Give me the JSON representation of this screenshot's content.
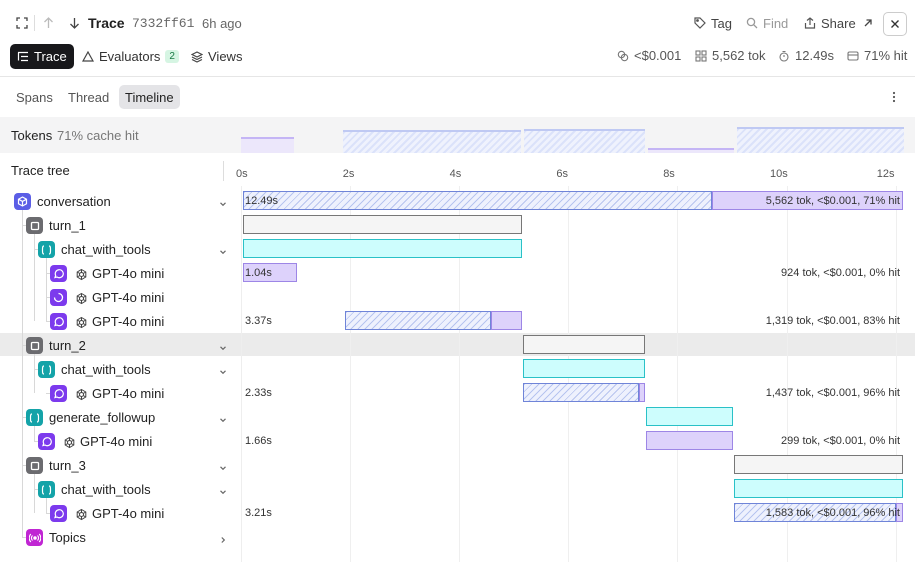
{
  "header": {
    "title": "Trace",
    "trace_id": "7332ff61",
    "time_ago": "6h ago",
    "tag_label": "Tag",
    "find_label": "Find",
    "share_label": "Share"
  },
  "subheader": {
    "trace_label": "Trace",
    "evaluators_label": "Evaluators",
    "evaluators_count": "2",
    "views_label": "Views",
    "cost": "<$0.001",
    "tokens": "5,562 tok",
    "duration": "12.49s",
    "cache": "71% hit"
  },
  "tabs": {
    "spans": "Spans",
    "thread": "Thread",
    "timeline": "Timeline"
  },
  "tokens_row": {
    "label": "Tokens",
    "cache": "71% cache hit"
  },
  "tree": {
    "title": "Trace tree",
    "items": [
      {
        "label": "conversation",
        "kind": "root"
      },
      {
        "label": "turn_1",
        "kind": "turn"
      },
      {
        "label": "chat_with_tools",
        "kind": "func"
      },
      {
        "label": "GPT-4o mini",
        "kind": "llm"
      },
      {
        "label": "GPT-4o mini",
        "kind": "llm-loading"
      },
      {
        "label": "GPT-4o mini",
        "kind": "llm"
      },
      {
        "label": "turn_2",
        "kind": "turn"
      },
      {
        "label": "chat_with_tools",
        "kind": "func"
      },
      {
        "label": "GPT-4o mini",
        "kind": "llm"
      },
      {
        "label": "generate_followup",
        "kind": "func"
      },
      {
        "label": "GPT-4o mini",
        "kind": "llm"
      },
      {
        "label": "turn_3",
        "kind": "turn"
      },
      {
        "label": "chat_with_tools",
        "kind": "func"
      },
      {
        "label": "GPT-4o mini",
        "kind": "llm"
      },
      {
        "label": "Topics",
        "kind": "topics"
      }
    ]
  },
  "timeline": {
    "ticks": [
      "0s",
      "2s",
      "4s",
      "6s",
      "8s",
      "10s",
      "12s"
    ],
    "rows": [
      {
        "duration": "12.49s",
        "stats": "5,562 tok, <$0.001, 71% hit"
      },
      {
        "duration": "",
        "stats": ""
      },
      {
        "duration": "",
        "stats": ""
      },
      {
        "duration": "1.04s",
        "stats": "924 tok, <$0.001, 0% hit"
      },
      {
        "duration": "",
        "stats": ""
      },
      {
        "duration": "3.37s",
        "stats": "1,319 tok, <$0.001, 83% hit"
      },
      {
        "duration": "",
        "stats": ""
      },
      {
        "duration": "",
        "stats": ""
      },
      {
        "duration": "2.33s",
        "stats": "1,437 tok, <$0.001, 96% hit"
      },
      {
        "duration": "",
        "stats": ""
      },
      {
        "duration": "1.66s",
        "stats": "299 tok, <$0.001, 0% hit"
      },
      {
        "duration": "",
        "stats": ""
      },
      {
        "duration": "",
        "stats": ""
      },
      {
        "duration": "3.21s",
        "stats": "1,583 tok, <$0.001, 96% hit"
      },
      {
        "duration": "",
        "stats": ""
      }
    ]
  },
  "colors": {
    "root": "#5b5ee6",
    "turn": "#6b6b6f",
    "func": "#14a3a8",
    "llm": "#7c3aed",
    "topics": "#c026d3",
    "accent": "#18181b"
  }
}
